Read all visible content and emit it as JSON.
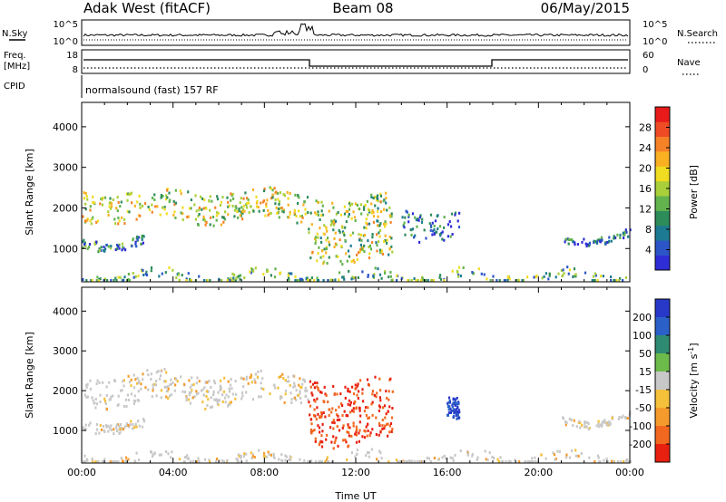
{
  "header": {
    "station": "Adak West (fitACF)",
    "beam": "Beam 08",
    "date": "06/May/2015"
  },
  "sky_panel": {
    "left_label": "N.Sky",
    "right_label": "N.Search",
    "left_ticks": [
      "10^5",
      "10^0"
    ],
    "right_ticks": [
      "10^5",
      "10^0"
    ]
  },
  "freq_panel": {
    "left_label_1": "Freq.",
    "left_label_2": "[MHz]",
    "right_label": "Nave",
    "cpid_label": "CPID",
    "left_ticks": [
      "18",
      "8"
    ],
    "right_ticks": [
      "60",
      "0"
    ],
    "program_text": "normalsound (fast) 157 RF"
  },
  "chart_data": [
    {
      "type": "heatmap",
      "title": "",
      "xlabel": "",
      "ylabel": "Slant Range [km]",
      "ylim": [
        180,
        4600
      ],
      "yticks": [
        "1000",
        "2000",
        "3000",
        "4000"
      ],
      "xlim_hours": [
        0,
        24
      ],
      "colorbar": {
        "label": "Power [dB]",
        "ticks": [
          "4",
          "8",
          "12",
          "16",
          "20",
          "24",
          "28"
        ],
        "range": [
          0,
          32
        ],
        "colors": [
          "#2e2dd6",
          "#2c55c8",
          "#1c7a92",
          "#2d8c5a",
          "#62b34e",
          "#a9cf3a",
          "#f0dc20",
          "#f9b021",
          "#f58227",
          "#ef4b24",
          "#e81a1a"
        ]
      },
      "echo_regions": [
        {
          "name": "band_morning",
          "start_h": 0.0,
          "end_h": 9.9,
          "range_km": [
            1700,
            2450
          ],
          "level": 0.55
        },
        {
          "name": "low_band_early",
          "start_h": 0.0,
          "end_h": 2.7,
          "range_km": [
            1050,
            1300
          ],
          "level": 0.2
        },
        {
          "name": "postnoon_blob",
          "start_h": 9.9,
          "end_h": 13.6,
          "range_km": [
            700,
            2300
          ],
          "level": 0.5
        },
        {
          "name": "afternoon_patches",
          "start_h": 14.0,
          "end_h": 16.5,
          "range_km": [
            1300,
            2000
          ],
          "level": 0.15
        },
        {
          "name": "evening_band",
          "start_h": 21.0,
          "end_h": 24.0,
          "range_km": [
            1200,
            1400
          ],
          "level": 0.15
        },
        {
          "name": "ground_strip",
          "start_h": 0.0,
          "end_h": 24.0,
          "range_km": [
            180,
            450
          ],
          "level": 0.35
        }
      ]
    },
    {
      "type": "heatmap",
      "title": "",
      "xlabel": "Time UT",
      "ylabel": "Slant Range [km]",
      "ylim": [
        180,
        4600
      ],
      "yticks": [
        "1000",
        "2000",
        "3000",
        "4000"
      ],
      "xlim_hours": [
        0,
        24
      ],
      "xticks": [
        "00:00",
        "04:00",
        "08:00",
        "12:00",
        "16:00",
        "20:00",
        "00:00"
      ],
      "colorbar": {
        "label": "Velocity [m s-1]",
        "label_base": "Velocity [m s",
        "label_exp": "-1",
        "label_close": "]",
        "ticks": [
          "200",
          "100",
          "50",
          "15",
          "-15",
          "-50",
          "-100",
          "-200"
        ],
        "range": [
          -250,
          250
        ],
        "colors": [
          "#2839c9",
          "#2a60c8",
          "#2f8a72",
          "#6dbb4a",
          "#c8c8c8",
          "#f5c03a",
          "#f59b2d",
          "#f2681f",
          "#e82010"
        ]
      },
      "echo_regions": [
        {
          "name": "band_morning",
          "start_h": 0.0,
          "end_h": 9.9,
          "range_km": [
            1700,
            2450
          ],
          "velocity": 0
        },
        {
          "name": "low_band_early",
          "start_h": 0.0,
          "end_h": 2.7,
          "range_km": [
            1050,
            1300
          ],
          "velocity": 0
        },
        {
          "name": "postnoon_red",
          "start_h": 9.9,
          "end_h": 13.6,
          "range_km": [
            700,
            2300
          ],
          "velocity": -200
        },
        {
          "name": "afternoon_blue",
          "start_h": 15.9,
          "end_h": 16.5,
          "range_km": [
            1400,
            1950
          ],
          "velocity": 200
        },
        {
          "name": "evening_band",
          "start_h": 21.0,
          "end_h": 24.0,
          "range_km": [
            1200,
            1400
          ],
          "velocity": 0
        },
        {
          "name": "ground_strip",
          "start_h": 0.0,
          "end_h": 24.0,
          "range_km": [
            180,
            450
          ],
          "velocity": 0
        }
      ]
    }
  ]
}
